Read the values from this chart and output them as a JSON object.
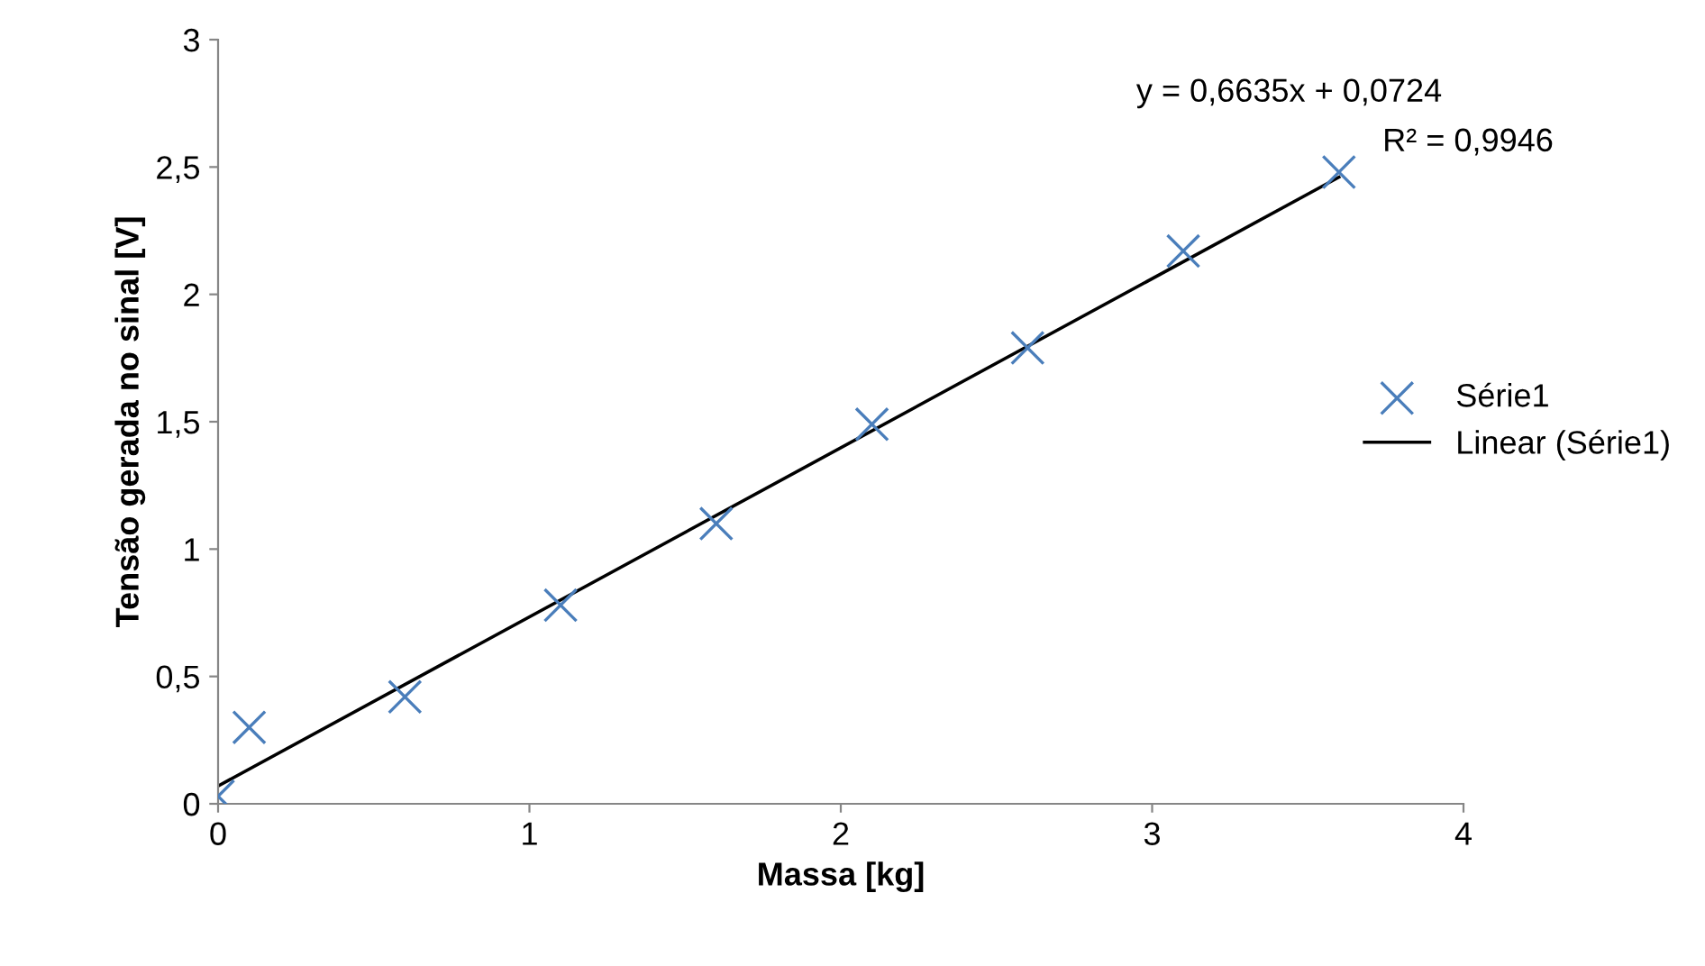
{
  "chart_data": {
    "type": "scatter",
    "xlabel": "Massa [kg]",
    "ylabel": "Tensão gerada no sinal [V]",
    "xlim": [
      0,
      4
    ],
    "xticks": [
      0,
      1,
      2,
      3,
      4
    ],
    "ylim": [
      0,
      3
    ],
    "yticks": [
      0,
      {
        "value": 0.5,
        "label": "0,5"
      },
      1,
      {
        "value": 1.5,
        "label": "1,5"
      },
      2,
      {
        "value": 2.5,
        "label": "2,5"
      },
      3
    ],
    "grid": false,
    "legend": "right",
    "series": [
      {
        "name": "Série1",
        "marker": "cross",
        "color": "#4a7ebb",
        "x": [
          0,
          0.1,
          0.6,
          1.1,
          1.6,
          2.1,
          2.6,
          3.1,
          3.6
        ],
        "values": [
          0.03,
          0.3,
          0.42,
          0.78,
          1.1,
          1.49,
          1.79,
          2.17,
          2.48
        ]
      },
      {
        "name": "Linear (Série1)",
        "type": "line",
        "color": "#000000",
        "line_style": "solid",
        "x": [
          0,
          3.6
        ],
        "values": [
          0.07,
          2.46
        ]
      }
    ],
    "annotations": [
      "y = 0,6635x + 0,0724",
      "R² = 0,9946"
    ]
  }
}
